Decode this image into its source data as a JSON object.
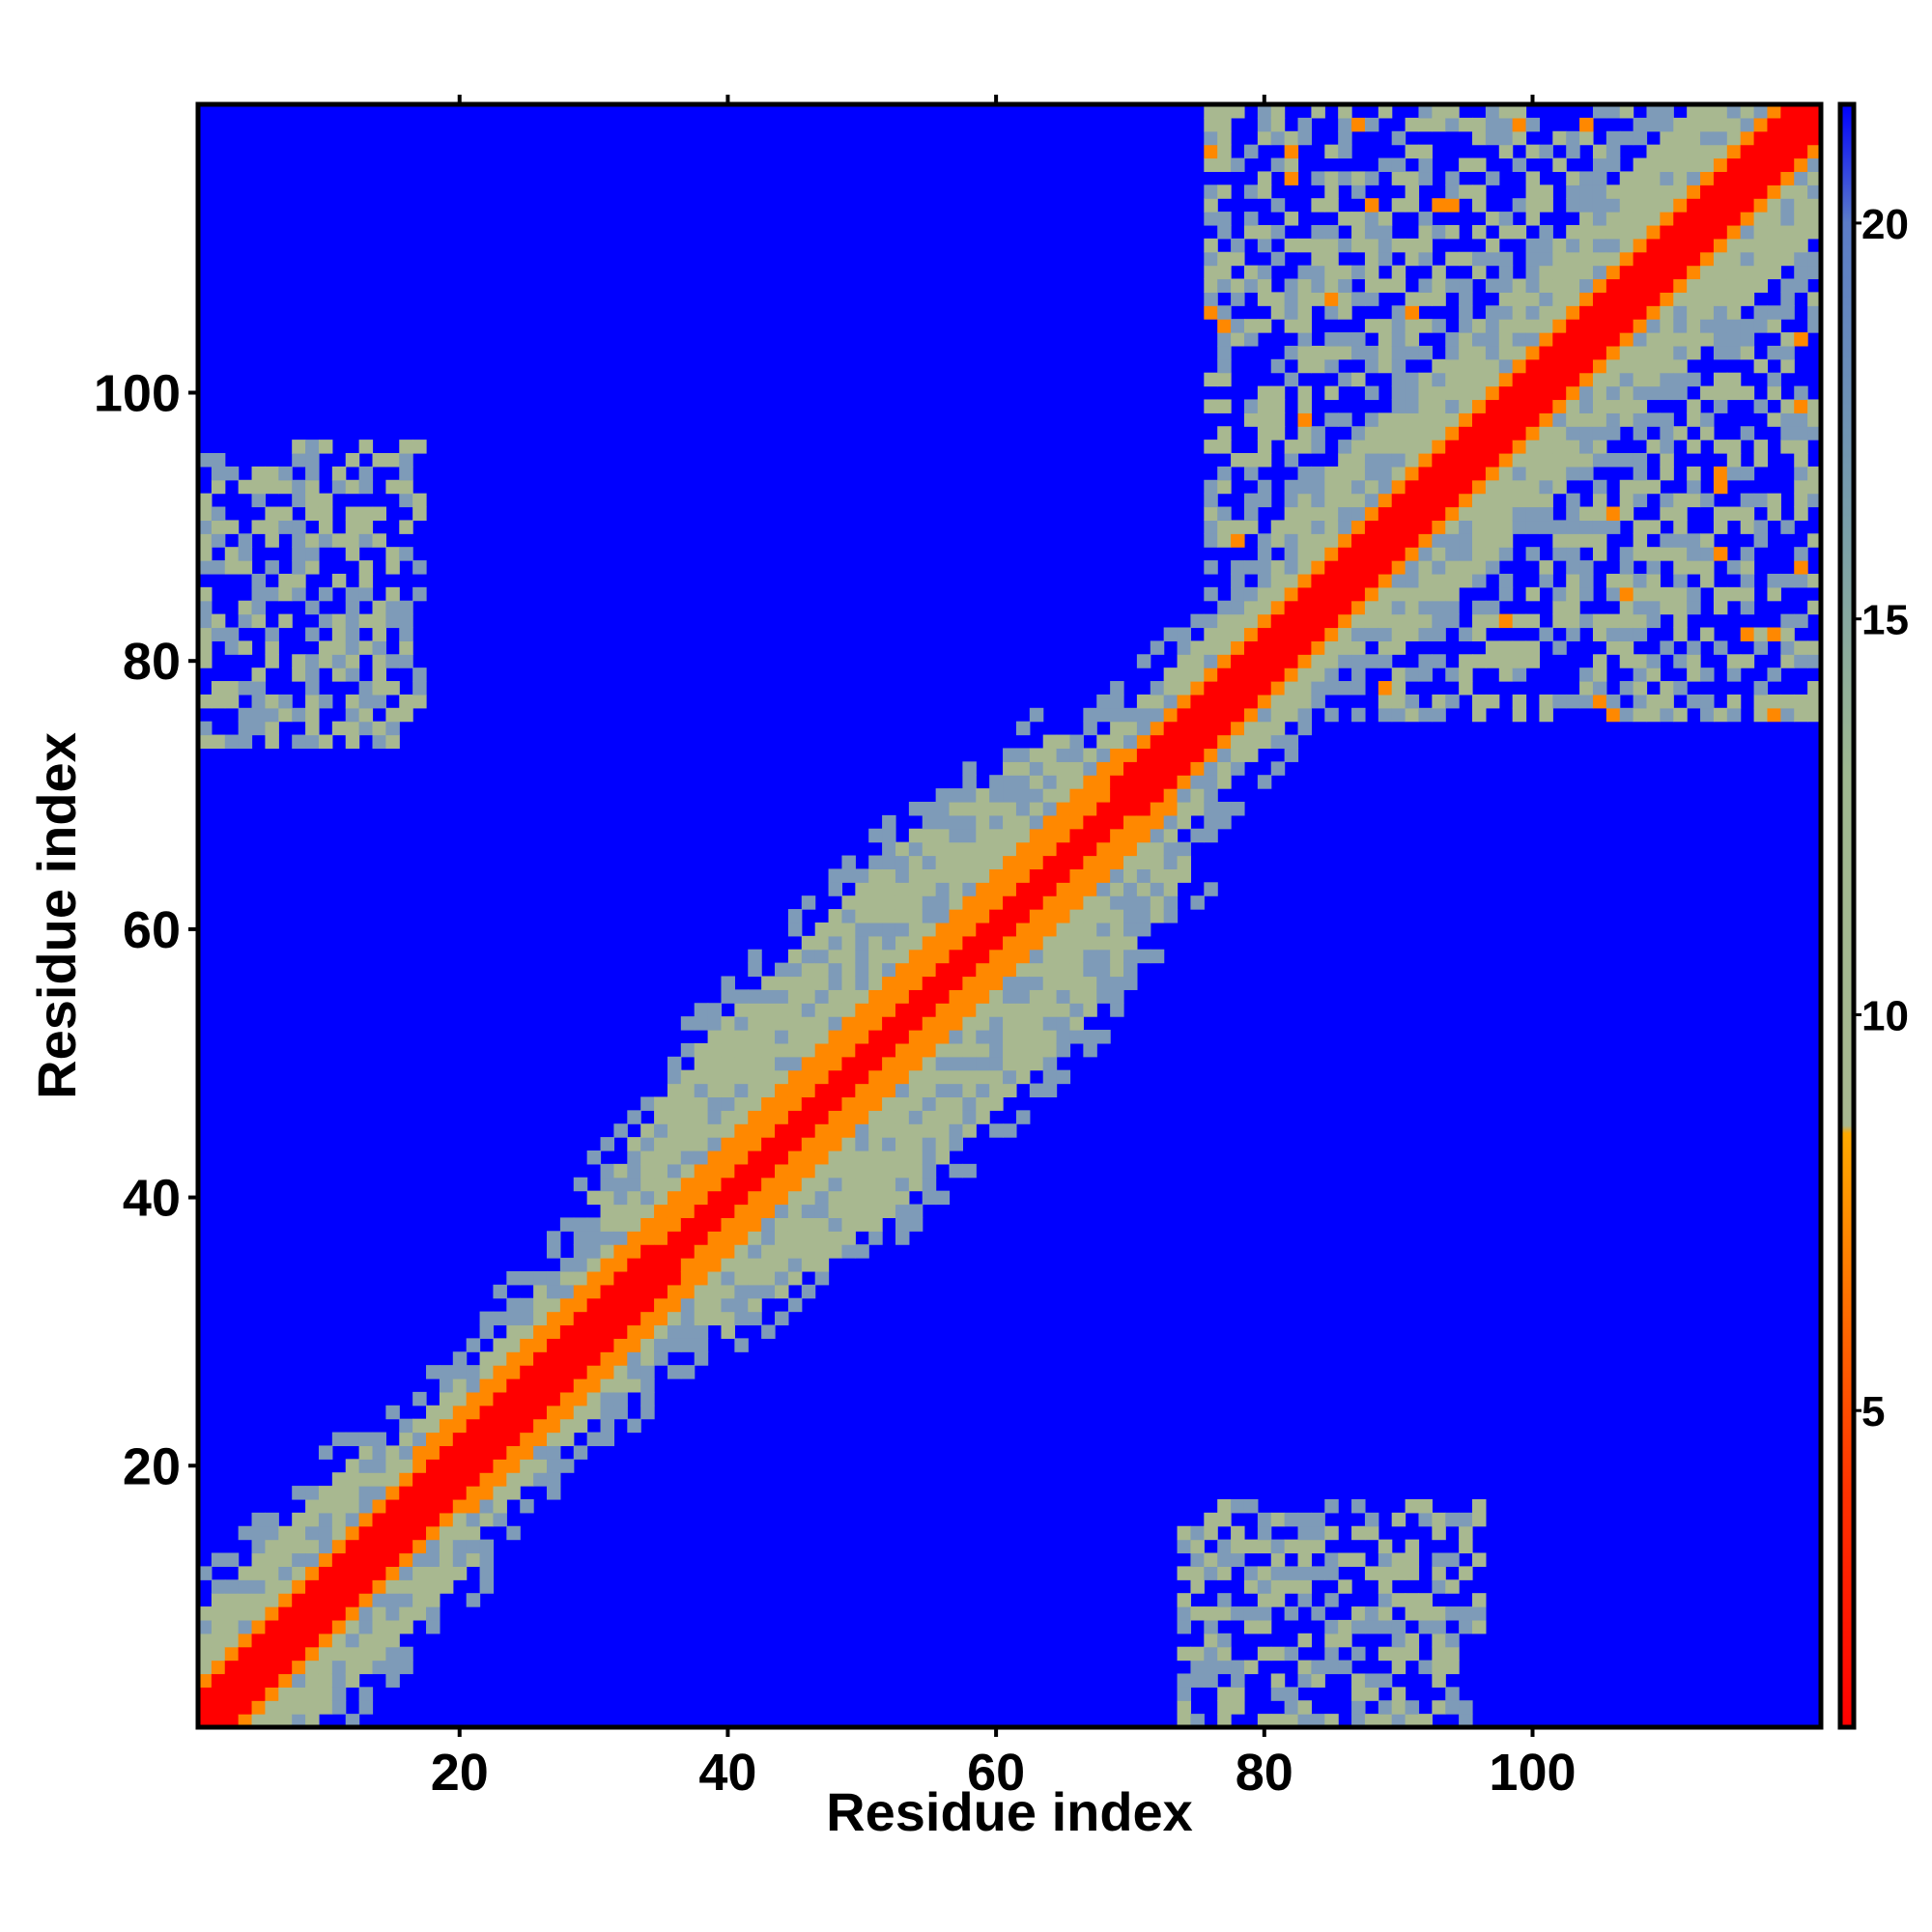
{
  "chart_data": {
    "type": "heatmap",
    "title": "",
    "xlabel": "Residue index",
    "ylabel": "Residue index",
    "xlim": [
      1,
      121
    ],
    "ylim": [
      1,
      121
    ],
    "x_ticks": [
      20,
      40,
      60,
      80,
      100
    ],
    "y_ticks": [
      20,
      40,
      60,
      80,
      100
    ],
    "colorbar": {
      "ticks": [
        5,
        10,
        15,
        20
      ],
      "range": [
        1,
        21.5
      ],
      "stops": [
        {
          "value": 1,
          "color": "#ff0000"
        },
        {
          "value": 4,
          "color": "#ff3300"
        },
        {
          "value": 6,
          "color": "#ff6600"
        },
        {
          "value": 8.5,
          "color": "#ffaa00"
        },
        {
          "value": 8.6,
          "color": "#a8b890"
        },
        {
          "value": 13,
          "color": "#9fb890"
        },
        {
          "value": 16,
          "color": "#7ba0a8"
        },
        {
          "value": 20,
          "color": "#5b7cc8"
        },
        {
          "value": 21.5,
          "color": "#0000ff"
        }
      ]
    },
    "colors": {
      "background": "#0000ff",
      "contact": "#ff0000",
      "near": "#ff8800",
      "mid": "#a8b890",
      "far": "#7e9bb8"
    },
    "grid": false,
    "legend": "colorbar-right",
    "contact_regions": [
      {
        "description": "main diagonal",
        "x": [
          1,
          121
        ],
        "y": [
          1,
          121
        ]
      },
      {
        "description": "N-C terminal contact (upper-left)",
        "x": [
          1,
          18
        ],
        "y": [
          73,
          97
        ]
      },
      {
        "description": "N-C terminal contact (lower-right)",
        "x": [
          73,
          97
        ],
        "y": [
          1,
          18
        ]
      },
      {
        "description": "C-terminal domain block",
        "x": [
          75,
          121
        ],
        "y": [
          75,
          121
        ]
      }
    ]
  }
}
